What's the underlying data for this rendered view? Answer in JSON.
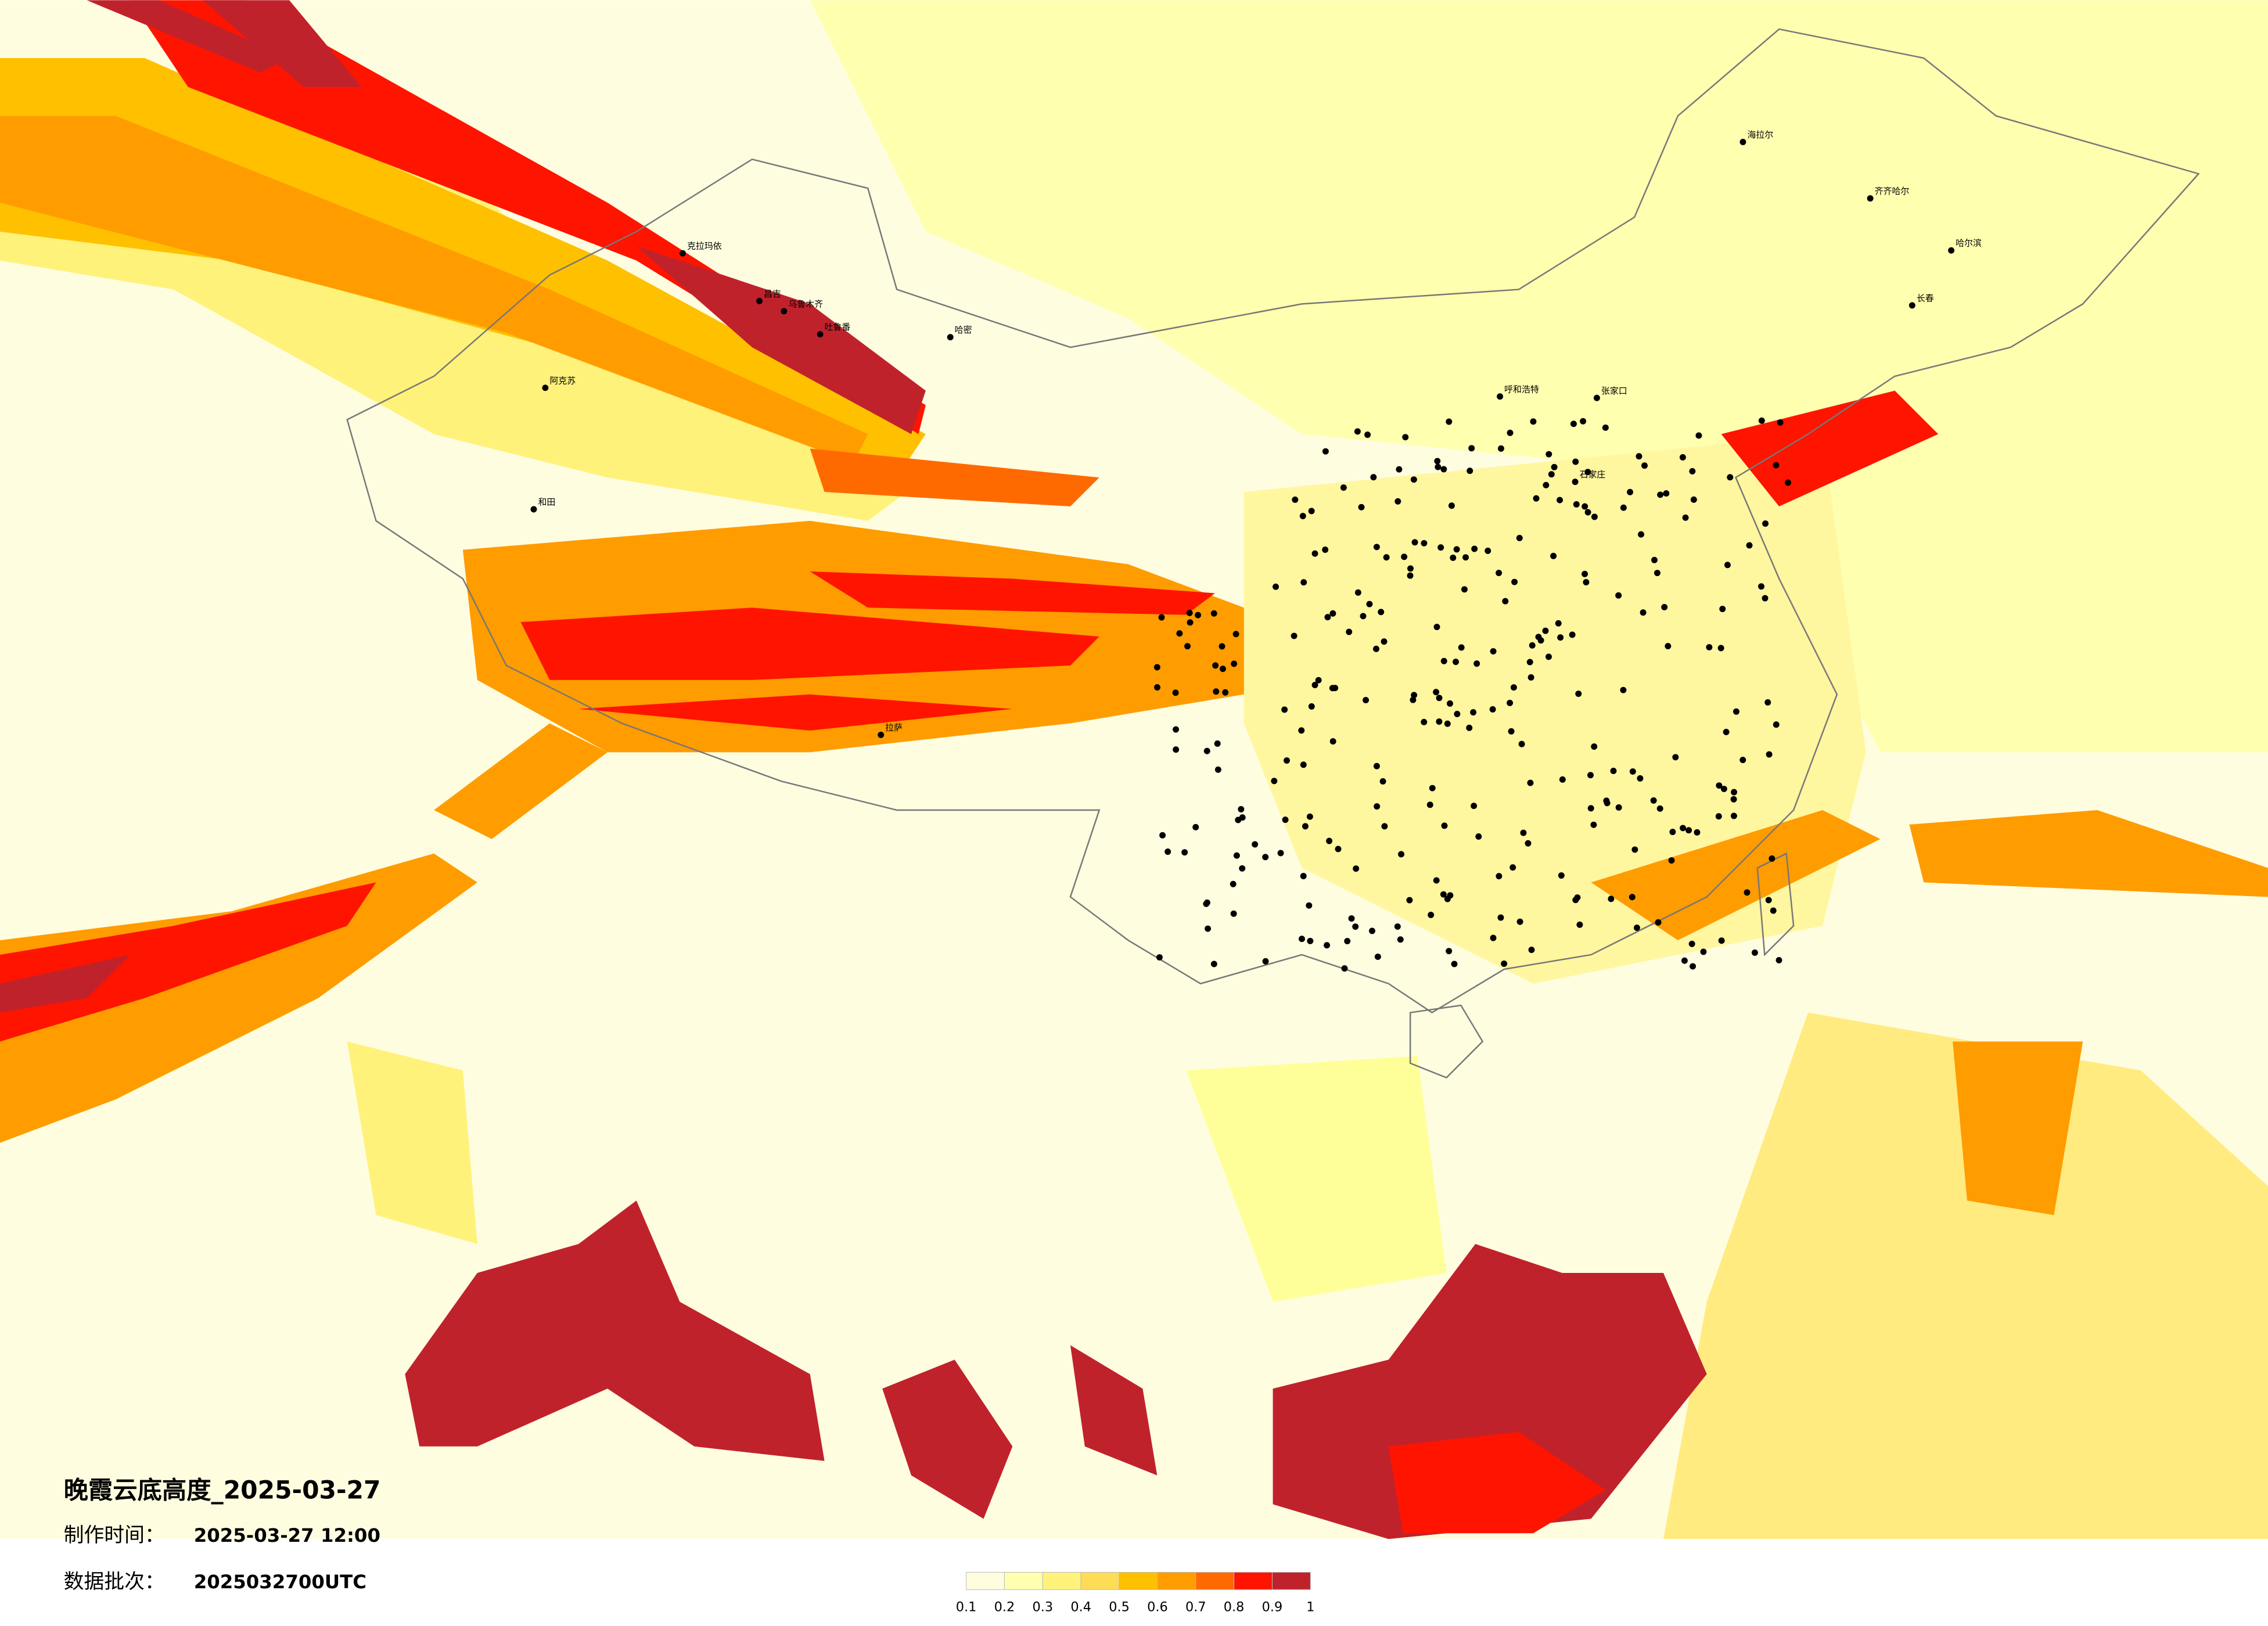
{
  "title": "晚霞云底高度_2025-03-27",
  "info": [
    {
      "label": "制作时间：",
      "value": "2025-03-27 12:00"
    },
    {
      "label": "数据批次：",
      "value": "2025032700UTC"
    }
  ],
  "colorbar": {
    "ticks": [
      0.1,
      0.2,
      0.3,
      0.4,
      0.5,
      0.6,
      0.7,
      0.8,
      0.9,
      1
    ],
    "colors": [
      "#fffde0",
      "#ffffb0",
      "#fff27a",
      "#ffdc55",
      "#ffc000",
      "#ff9c00",
      "#ff6a00",
      "#ff1400",
      "#c0222c"
    ]
  },
  "cities": [
    "克拉玛依",
    "昌吉",
    "乌鲁木齐",
    "吐鲁番",
    "哈密",
    "阿克苏",
    "和田",
    "海拉尔",
    "齐齐哈尔",
    "哈尔滨",
    "长春",
    "呼和浩特",
    "张家口",
    "石家庄",
    "拉萨"
  ]
}
